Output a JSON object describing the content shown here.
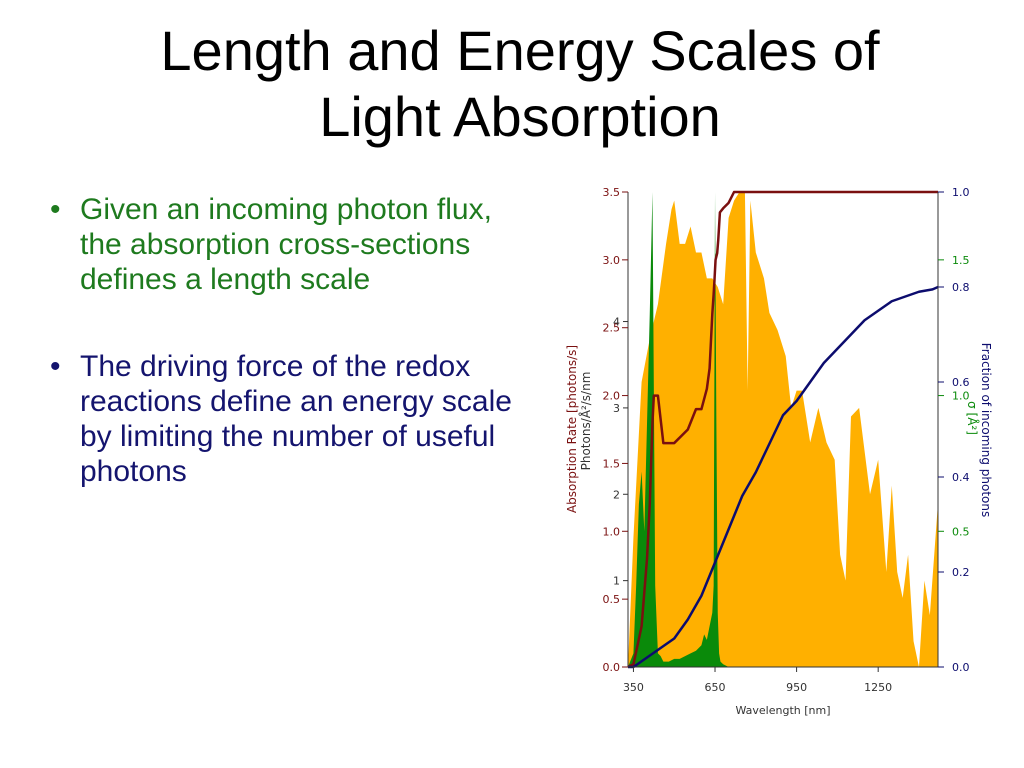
{
  "slide": {
    "title_line1": "Length and Energy Scales of",
    "title_line2": "Light Absorption",
    "bullets": [
      {
        "marker": "•",
        "text": "Given an incoming photon flux, the absorption cross-sections defines a length scale"
      },
      {
        "marker": "•",
        "text": "The driving force of the redox reactions define an energy scale by limiting the number of useful photons"
      }
    ]
  },
  "colors": {
    "bullet1": "#1e7a1e",
    "bullet2": "#14146e",
    "solar": "#ffb000",
    "absorption": "#0a8a0a",
    "cumulative": "#7a1010",
    "fraction": "#0c0c6e"
  },
  "chart_data": {
    "type": "area",
    "xlabel": "Wavelength [nm]",
    "xlim": [
      330,
      1470
    ],
    "x_ticks": [
      350,
      650,
      950,
      1250
    ],
    "axes": {
      "photon_flux": {
        "label": "Photons/Å²/s/nm",
        "range": [
          0,
          5.5
        ],
        "ticks": [
          {
            "v": 1,
            "t": "1"
          },
          {
            "v": 2,
            "t": "2"
          },
          {
            "v": 3,
            "t": "3"
          },
          {
            "v": 4,
            "t": "4"
          }
        ]
      },
      "absorption_rate": {
        "label": "Absorption Rate [photons/s]",
        "range": [
          0,
          3.5
        ],
        "ticks": [
          {
            "v": 0,
            "t": "0.0"
          },
          {
            "v": 0.5,
            "t": "0.5"
          },
          {
            "v": 1.0,
            "t": "1.0"
          },
          {
            "v": 1.5,
            "t": "1.5"
          },
          {
            "v": 2.0,
            "t": "2.0"
          },
          {
            "v": 2.5,
            "t": "2.5"
          },
          {
            "v": 3.0,
            "t": "3.0"
          },
          {
            "v": 3.5,
            "t": "3.5"
          }
        ]
      },
      "cross_section": {
        "label": "σ [Å²]",
        "range": [
          0,
          1.75
        ],
        "ticks": [
          {
            "v": 0.5,
            "t": "0.5"
          },
          {
            "v": 1.0,
            "t": "1.0"
          },
          {
            "v": 1.5,
            "t": "1.5"
          }
        ]
      },
      "fraction": {
        "label": "Fraction of incoming photons",
        "range": [
          0,
          1.0
        ],
        "ticks": [
          {
            "v": 0,
            "t": "0.0"
          },
          {
            "v": 0.2,
            "t": "0.2"
          },
          {
            "v": 0.4,
            "t": "0.4"
          },
          {
            "v": 0.6,
            "t": "0.6"
          },
          {
            "v": 0.8,
            "t": "0.8"
          },
          {
            "v": 1.0,
            "t": "1.0"
          }
        ]
      }
    },
    "series": [
      {
        "axis": "photon_flux",
        "kind": "area",
        "x": [
          330,
          350,
          380,
          410,
          440,
          470,
          490,
          500,
          520,
          540,
          560,
          580,
          600,
          620,
          640,
          660,
          680,
          700,
          720,
          740,
          760,
          770,
          780,
          800,
          830,
          850,
          880,
          910,
          930,
          950,
          970,
          990,
          1000,
          1030,
          1060,
          1090,
          1110,
          1130,
          1150,
          1180,
          1220,
          1250,
          1280,
          1300,
          1320,
          1340,
          1360,
          1380,
          1400,
          1420,
          1440,
          1470
        ],
        "y": [
          0,
          1.5,
          3.3,
          3.8,
          4.2,
          4.9,
          5.3,
          5.4,
          4.9,
          4.9,
          5.1,
          4.8,
          4.8,
          4.5,
          4.5,
          4.4,
          4.2,
          5.2,
          5.4,
          5.6,
          5.5,
          3.2,
          5.4,
          4.8,
          4.5,
          4.1,
          3.9,
          3.6,
          3.0,
          3.2,
          3.2,
          2.8,
          2.6,
          3.0,
          2.6,
          2.4,
          1.3,
          1.0,
          2.9,
          3.0,
          2.0,
          2.4,
          1.1,
          2.1,
          1.1,
          0.8,
          1.3,
          0.3,
          0.0,
          1.0,
          0.6,
          1.9
        ]
      },
      {
        "axis": "cross_section",
        "kind": "area",
        "x": [
          330,
          350,
          360,
          370,
          380,
          390,
          400,
          410,
          420,
          430,
          440,
          450,
          460,
          480,
          500,
          520,
          540,
          560,
          580,
          600,
          610,
          620,
          630,
          640,
          645,
          650,
          655,
          660,
          665,
          670,
          680,
          700,
          720,
          1470
        ],
        "y": [
          0,
          0.05,
          0.3,
          0.6,
          0.72,
          0.5,
          0.9,
          1.3,
          2.5,
          0.3,
          0.05,
          0.04,
          0.02,
          0.02,
          0.03,
          0.03,
          0.04,
          0.05,
          0.06,
          0.08,
          0.12,
          0.1,
          0.15,
          0.2,
          0.3,
          1.75,
          0.9,
          0.2,
          0.05,
          0.02,
          0.01,
          0,
          0,
          0
        ]
      },
      {
        "axis": "absorption_rate",
        "kind": "line",
        "x": [
          330,
          350,
          380,
          400,
          410,
          420,
          425,
          430,
          440,
          460,
          500,
          550,
          580,
          600,
          620,
          630,
          640,
          645,
          648,
          652,
          658,
          662,
          668,
          680,
          700,
          720,
          760,
          1000,
          1470
        ],
        "y": [
          0,
          0.02,
          0.3,
          0.8,
          1.2,
          1.8,
          2.0,
          2.0,
          2.0,
          1.65,
          1.65,
          1.75,
          1.9,
          1.9,
          2.05,
          2.2,
          2.6,
          2.75,
          2.85,
          3.0,
          3.05,
          3.15,
          3.35,
          3.38,
          3.42,
          3.5,
          3.5,
          3.5,
          3.5
        ]
      },
      {
        "axis": "fraction",
        "kind": "line",
        "x": [
          330,
          350,
          400,
          450,
          500,
          550,
          600,
          650,
          700,
          750,
          800,
          850,
          900,
          950,
          1000,
          1050,
          1100,
          1150,
          1200,
          1250,
          1300,
          1350,
          1400,
          1450,
          1470
        ],
        "y": [
          0,
          0.0,
          0.02,
          0.04,
          0.06,
          0.1,
          0.15,
          0.22,
          0.29,
          0.36,
          0.41,
          0.47,
          0.53,
          0.56,
          0.6,
          0.64,
          0.67,
          0.7,
          0.73,
          0.75,
          0.77,
          0.78,
          0.79,
          0.795,
          0.8
        ]
      }
    ]
  }
}
